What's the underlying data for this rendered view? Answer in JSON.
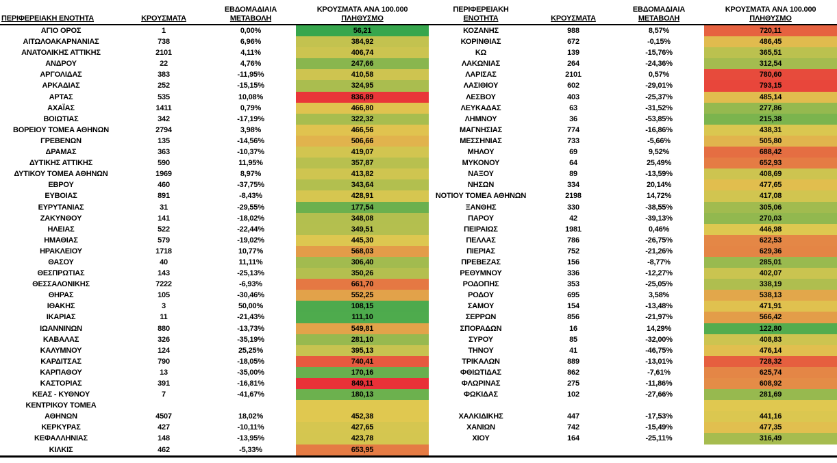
{
  "heat_scale": {
    "min_color": "#37A64D",
    "mid_color": "#E0C850",
    "max_color": "#E93138"
  },
  "tables": [
    {
      "id": "left",
      "headers": {
        "region_l1": "",
        "region_l2": "ΠΕΡΙΦΕΡΕΙΑΚΗ ΕΝΟΤΗΤΑ",
        "cases_l1": "",
        "cases_l2": "ΚΡΟΥΣΜΑΤΑ",
        "change_l1": "ΕΒΔΟΜΑΔΙΑΙΑ",
        "change_l2": "ΜΕΤΑΒΟΛΗ",
        "per100k_l1": "ΚΡΟΥΣΜΑΤΑ ΑΝΑ 100.000",
        "per100k_l2": "ΠΛΗΘΥΣΜΟ"
      },
      "rows": [
        [
          "ΑΓΙΟ ΟΡΟΣ",
          "1",
          "0,00%",
          "56,21",
          1
        ],
        [
          "ΑΙΤΩΛΟΑΚΑΡΝΑΝΙΑΣ",
          "738",
          "6,96%",
          "384,92",
          1
        ],
        [
          "ΑΝΑΤΟΛΙΚΗΣ ΑΤΤΙΚΗΣ",
          "2101",
          "4,11%",
          "406,74",
          1
        ],
        [
          "ΑΝΔΡΟΥ",
          "22",
          "4,76%",
          "247,66",
          1
        ],
        [
          "ΑΡΓΟΛΙΔΑΣ",
          "383",
          "-11,95%",
          "410,58",
          1
        ],
        [
          "ΑΡΚΑΔΙΑΣ",
          "252",
          "-15,15%",
          "324,95",
          1
        ],
        [
          "ΑΡΤΑΣ",
          "535",
          "10,08%",
          "836,89",
          1
        ],
        [
          "ΑΧΑΪΑΣ",
          "1411",
          "0,79%",
          "466,80",
          1
        ],
        [
          "ΒΟΙΩΤΙΑΣ",
          "342",
          "-17,19%",
          "322,32",
          1
        ],
        [
          "ΒΟΡΕΙΟΥ ΤΟΜΕΑ ΑΘΗΝΩΝ",
          "2794",
          "3,98%",
          "466,56",
          1
        ],
        [
          "ΓΡΕΒΕΝΩΝ",
          "135",
          "-14,56%",
          "506,66",
          1
        ],
        [
          "ΔΡΑΜΑΣ",
          "363",
          "-10,37%",
          "419,07",
          1
        ],
        [
          "ΔΥΤΙΚΗΣ ΑΤΤΙΚΗΣ",
          "590",
          "11,95%",
          "357,87",
          1
        ],
        [
          "ΔΥΤΙΚΟΥ ΤΟΜΕΑ ΑΘΗΝΩΝ",
          "1969",
          "8,97%",
          "413,82",
          1
        ],
        [
          "ΕΒΡΟΥ",
          "460",
          "-37,75%",
          "343,64",
          1
        ],
        [
          "ΕΥΒΟΙΑΣ",
          "891",
          "-8,43%",
          "428,91",
          1
        ],
        [
          "ΕΥΡΥΤΑΝΙΑΣ",
          "31",
          "-29,55%",
          "177,54",
          1
        ],
        [
          "ΖΑΚΥΝΘΟΥ",
          "141",
          "-18,02%",
          "348,08",
          1
        ],
        [
          "ΗΛΕΙΑΣ",
          "522",
          "-22,44%",
          "349,51",
          1
        ],
        [
          "ΗΜΑΘΙΑΣ",
          "579",
          "-19,02%",
          "445,30",
          1
        ],
        [
          "ΗΡΑΚΛΕΙΟΥ",
          "1718",
          "10,77%",
          "568,03",
          1
        ],
        [
          "ΘΑΣΟΥ",
          "40",
          "11,11%",
          "306,40",
          1
        ],
        [
          "ΘΕΣΠΡΩΤΙΑΣ",
          "143",
          "-25,13%",
          "350,26",
          1
        ],
        [
          "ΘΕΣΣΑΛΟΝΙΚΗΣ",
          "7222",
          "-6,93%",
          "661,70",
          1
        ],
        [
          "ΘΗΡΑΣ",
          "105",
          "-30,46%",
          "552,25",
          1
        ],
        [
          "ΙΘΑΚΗΣ",
          "3",
          "50,00%",
          "108,15",
          1
        ],
        [
          "ΙΚΑΡΙΑΣ",
          "11",
          "-21,43%",
          "111,10",
          1
        ],
        [
          "ΙΩΑΝΝΙΝΩΝ",
          "880",
          "-13,73%",
          "549,81",
          1
        ],
        [
          "ΚΑΒΑΛΑΣ",
          "326",
          "-35,19%",
          "281,10",
          1
        ],
        [
          "ΚΑΛΥΜΝΟΥ",
          "124",
          "25,25%",
          "395,13",
          1
        ],
        [
          "ΚΑΡΔΙΤΣΑΣ",
          "790",
          "-18,05%",
          "740,41",
          1
        ],
        [
          "ΚΑΡΠΑΘΟΥ",
          "13",
          "-35,00%",
          "170,16",
          1
        ],
        [
          "ΚΑΣΤΟΡΙΑΣ",
          "391",
          "-16,81%",
          "849,11",
          1
        ],
        [
          "ΚΕΑΣ - ΚΥΘΝΟΥ",
          "7",
          "-41,67%",
          "180,13",
          1
        ],
        [
          "ΚΕΝΤΡΙΚΟΥ ΤΟΜΕΑ",
          "",
          "",
          "",
          1
        ],
        [
          "ΑΘΗΝΩΝ",
          "4507",
          "18,02%",
          "452,38",
          1
        ],
        [
          "ΚΕΡΚΥΡΑΣ",
          "427",
          "-10,11%",
          "427,65",
          1
        ],
        [
          "ΚΕΦΑΛΛΗΝΙΑΣ",
          "148",
          "-13,95%",
          "423,78",
          1
        ],
        [
          "ΚΙΛΚΙΣ",
          "462",
          "-5,33%",
          "653,95",
          1
        ]
      ]
    },
    {
      "id": "right",
      "headers": {
        "region_l1": "ΠΕΡΙΦΕΡΕΙΑΚΗ",
        "region_l2": "ΕΝΟΤΗΤΑ",
        "cases_l1": "",
        "cases_l2": "ΚΡΟΥΣΜΑΤΑ",
        "change_l1": "ΕΒΔΟΜΑΔΙΑΙΑ",
        "change_l2": "ΜΕΤΑΒΟΛΗ",
        "per100k_l1": "ΚΡΟΥΣΜΑΤΑ ΑΝΑ 100.000",
        "per100k_l2": "ΠΛΗΘΥΣΜΟ"
      },
      "rows": [
        [
          "ΚΟΖΑΝΗΣ",
          "988",
          "8,57%",
          "720,11",
          1
        ],
        [
          "ΚΟΡΙΝΘΙΑΣ",
          "672",
          "-0,15%",
          "486,45",
          1
        ],
        [
          "ΚΩ",
          "139",
          "-15,76%",
          "365,51",
          1
        ],
        [
          "ΛΑΚΩΝΙΑΣ",
          "264",
          "-24,36%",
          "312,54",
          1
        ],
        [
          "ΛΑΡΙΣΑΣ",
          "2101",
          "0,57%",
          "780,60",
          1
        ],
        [
          "ΛΑΣΙΘΙΟΥ",
          "602",
          "-29,01%",
          "793,15",
          1
        ],
        [
          "ΛΕΣΒΟΥ",
          "403",
          "-25,37%",
          "485,14",
          1
        ],
        [
          "ΛΕΥΚΑΔΑΣ",
          "63",
          "-31,52%",
          "277,86",
          1
        ],
        [
          "ΛΗΜΝΟΥ",
          "36",
          "-53,85%",
          "215,38",
          1
        ],
        [
          "ΜΑΓΝΗΣΙΑΣ",
          "774",
          "-16,86%",
          "438,31",
          1
        ],
        [
          "ΜΕΣΣΗΝΙΑΣ",
          "733",
          "-5,66%",
          "505,80",
          1
        ],
        [
          "ΜΗΛΟΥ",
          "69",
          "9,52%",
          "688,42",
          1
        ],
        [
          "ΜΥΚΟΝΟΥ",
          "64",
          "25,49%",
          "652,93",
          1
        ],
        [
          "ΝΑΞΟΥ",
          "89",
          "-13,59%",
          "408,69",
          1
        ],
        [
          "ΝΗΣΩΝ",
          "334",
          "20,14%",
          "477,65",
          1
        ],
        [
          "ΝΟΤΙΟΥ ΤΟΜΕΑ ΑΘΗΝΩΝ",
          "2198",
          "14,72%",
          "417,08",
          1
        ],
        [
          "ΞΑΝΘΗΣ",
          "330",
          "-38,55%",
          "305,06",
          1
        ],
        [
          "ΠΑΡΟΥ",
          "42",
          "-39,13%",
          "270,03",
          1
        ],
        [
          "ΠΕΙΡΑΙΩΣ",
          "1981",
          "0,46%",
          "446,98",
          1
        ],
        [
          "ΠΕΛΛΑΣ",
          "786",
          "-26,75%",
          "622,53",
          1
        ],
        [
          "ΠΙΕΡΙΑΣ",
          "752",
          "-21,26%",
          "629,36",
          1
        ],
        [
          "ΠΡΕΒΕΖΑΣ",
          "156",
          "-8,77%",
          "285,01",
          1
        ],
        [
          "ΡΕΘΥΜΝΟΥ",
          "336",
          "-12,27%",
          "402,07",
          1
        ],
        [
          "ΡΟΔΟΠΗΣ",
          "353",
          "-25,05%",
          "338,19",
          1
        ],
        [
          "ΡΟΔΟΥ",
          "695",
          "3,58%",
          "538,13",
          1
        ],
        [
          "ΣΑΜΟΥ",
          "154",
          "-13,48%",
          "471,91",
          1
        ],
        [
          "ΣΕΡΡΩΝ",
          "856",
          "-21,97%",
          "566,42",
          1
        ],
        [
          "ΣΠΟΡΑΔΩΝ",
          "16",
          "14,29%",
          "122,80",
          1
        ],
        [
          "ΣΥΡΟΥ",
          "85",
          "-32,00%",
          "408,83",
          1
        ],
        [
          "ΤΗΝΟΥ",
          "41",
          "-46,75%",
          "476,14",
          1
        ],
        [
          "ΤΡΙΚΑΛΩΝ",
          "889",
          "-13,01%",
          "728,32",
          1
        ],
        [
          "ΦΘΙΩΤΙΔΑΣ",
          "862",
          "-7,61%",
          "625,74",
          1
        ],
        [
          "ΦΛΩΡΙΝΑΣ",
          "275",
          "-11,86%",
          "608,92",
          1
        ],
        [
          "ΦΩΚΙΔΑΣ",
          "102",
          "-27,66%",
          "281,69",
          1
        ],
        [
          "",
          "",
          "",
          "",
          1
        ],
        [
          "ΧΑΛΚΙΔΙΚΗΣ",
          "447",
          "-17,53%",
          "441,16",
          1
        ],
        [
          "ΧΑΝΙΩΝ",
          "742",
          "-15,49%",
          "477,35",
          1
        ],
        [
          "ΧΙΟΥ",
          "164",
          "-25,11%",
          "316,49",
          1
        ],
        [
          "",
          "",
          "",
          "",
          0
        ]
      ]
    }
  ]
}
